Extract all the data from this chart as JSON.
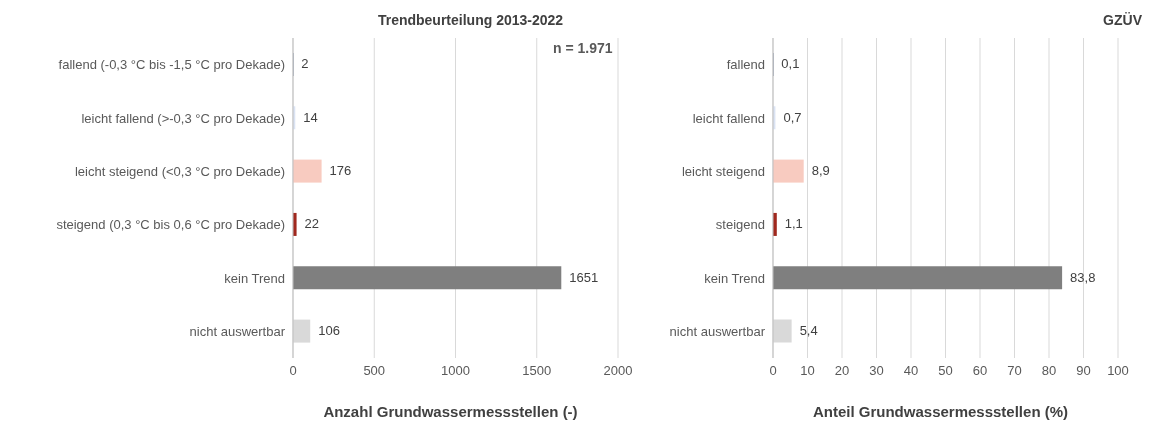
{
  "chart_data": [
    {
      "type": "bar",
      "orientation": "horizontal",
      "title": "Trendbeurteilung 2013-2022",
      "xlabel": "Anzahl Grundwassermessstellen (-)",
      "categories": [
        "fallend (-0,3 °C bis -1,5 °C pro Dekade)",
        "leicht fallend (>-0,3 °C pro Dekade)",
        "leicht steigend (<0,3 °C pro Dekade)",
        "steigend (0,3 °C bis 0,6 °C pro Dekade)",
        "kein Trend",
        "nicht auswertbar"
      ],
      "values": [
        2,
        14,
        176,
        22,
        1651,
        106
      ],
      "colors": [
        "#203864",
        "#dae3f3",
        "#f8cbc0",
        "#a0281e",
        "#7f7f7f",
        "#d9d9d9"
      ],
      "value_labels": [
        "2",
        "14",
        "176",
        "22",
        "1651",
        "106"
      ],
      "xlim": [
        0,
        2000
      ],
      "xticks": [
        0,
        500,
        1000,
        1500,
        2000
      ],
      "grid": "x",
      "annotations": [
        "n = 1.971"
      ]
    },
    {
      "type": "bar",
      "orientation": "horizontal",
      "xlabel": "Anteil Grundwassermessstellen (%)",
      "categories": [
        "fallend",
        "leicht fallend",
        "leicht steigend",
        "steigend",
        "kein Trend",
        "nicht auswertbar"
      ],
      "values": [
        0.1,
        0.7,
        8.9,
        1.1,
        83.8,
        5.4
      ],
      "colors": [
        "#203864",
        "#dae3f3",
        "#f8cbc0",
        "#a0281e",
        "#7f7f7f",
        "#d9d9d9"
      ],
      "value_labels": [
        "0,1",
        "0,7",
        "8,9",
        "1,1",
        "83,8",
        "5,4"
      ],
      "xlim": [
        0,
        100
      ],
      "xticks": [
        0,
        10,
        20,
        30,
        40,
        50,
        60,
        70,
        80,
        90,
        100
      ],
      "grid": "x",
      "annotations": [
        "GZÜV"
      ]
    }
  ]
}
